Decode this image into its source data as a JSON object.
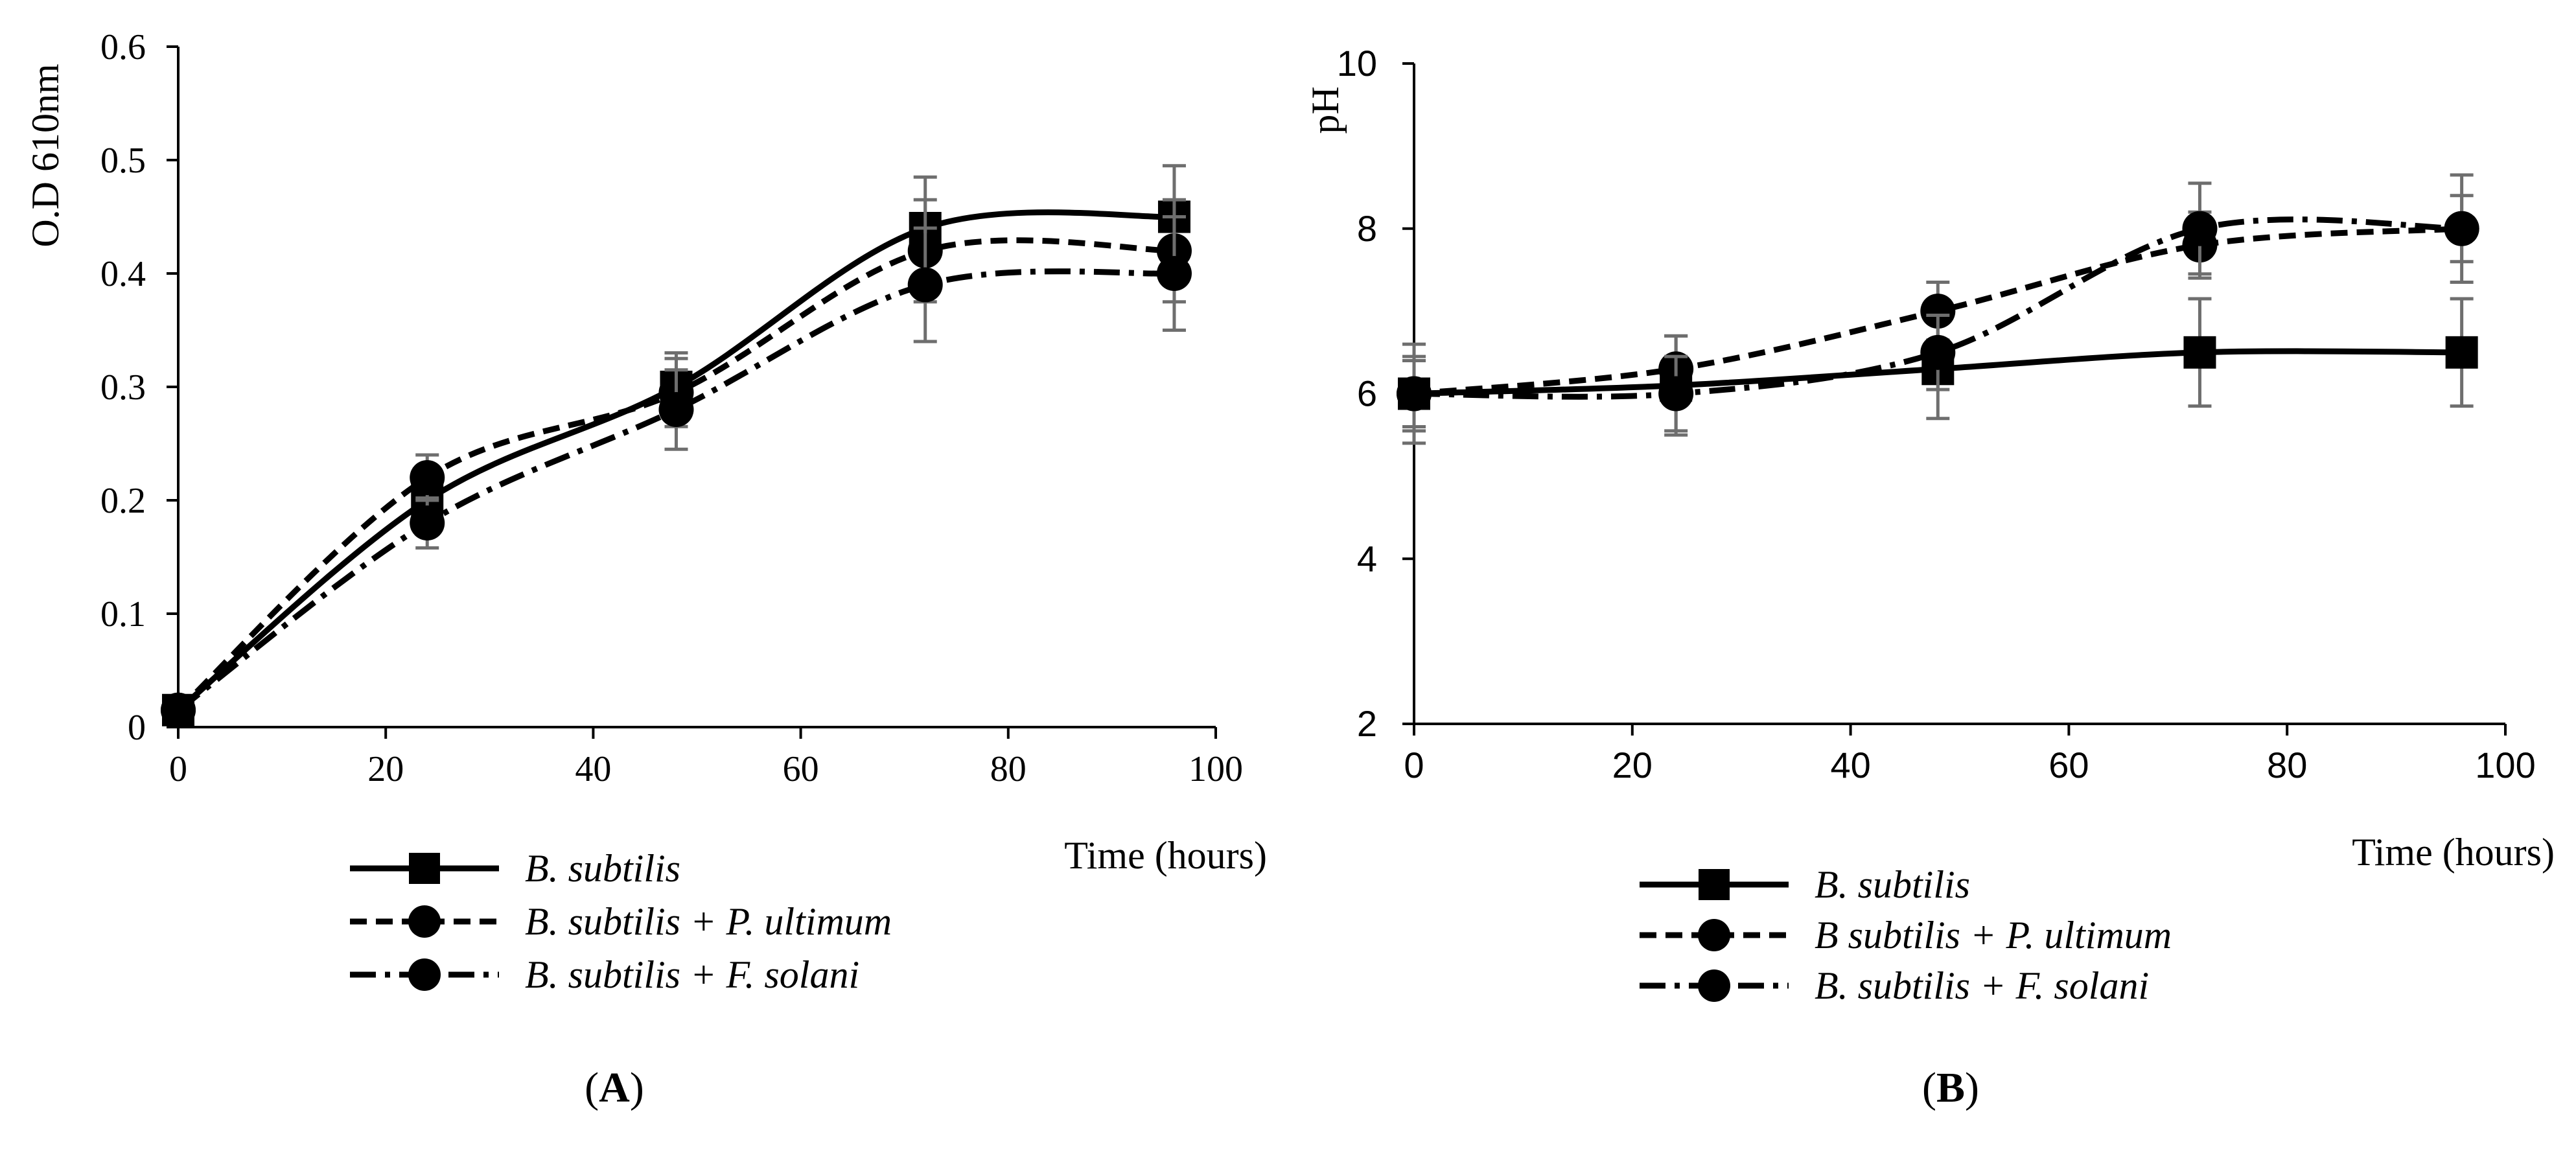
{
  "chart_data": [
    {
      "id": "A",
      "type": "line",
      "panel_label": "A",
      "xlabel": "Time (hours)",
      "ylabel": "O.D 610nm",
      "xlim": [
        0,
        100
      ],
      "ylim": [
        0,
        0.6
      ],
      "x_ticks": [
        0,
        20,
        40,
        60,
        80,
        100
      ],
      "y_ticks": [
        0,
        0.1,
        0.2,
        0.3,
        0.4,
        0.5,
        0.6
      ],
      "x_tick_labels": [
        "0",
        "20",
        "40",
        "60",
        "80",
        "100"
      ],
      "y_tick_labels": [
        "0",
        "0.1",
        "0.2",
        "0.3",
        "0.4",
        "0.5",
        "0.6"
      ],
      "x": [
        0,
        24,
        48,
        72,
        96
      ],
      "series": [
        {
          "name": "B. subtilis",
          "style": "solid",
          "marker": "square",
          "values": [
            0.015,
            0.2,
            0.3,
            0.44,
            0.45
          ],
          "errors": [
            0.01,
            0.02,
            0.03,
            0.045,
            0.045
          ]
        },
        {
          "name": "B. subtilis + P. ultimum",
          "style": "dash",
          "marker": "circle",
          "values": [
            0.015,
            0.22,
            0.295,
            0.42,
            0.42
          ],
          "errors": [
            0.01,
            0.02,
            0.03,
            0.045,
            0.045
          ]
        },
        {
          "name": "B. subtilis + F. solani",
          "style": "dashdot",
          "marker": "circle",
          "values": [
            0.015,
            0.18,
            0.28,
            0.39,
            0.4
          ],
          "errors": [
            0.01,
            0.022,
            0.035,
            0.05,
            0.05
          ]
        }
      ],
      "legend": [
        "B. subtilis",
        "B. subtilis + P. ultimum",
        "B. subtilis + F. solani"
      ]
    },
    {
      "id": "B",
      "type": "line",
      "panel_label": "B",
      "xlabel": "Time (hours)",
      "ylabel": "pH",
      "xlim": [
        0,
        100
      ],
      "ylim": [
        2,
        10
      ],
      "x_ticks": [
        0,
        20,
        40,
        60,
        80,
        100
      ],
      "y_ticks": [
        2,
        4,
        6,
        8,
        10
      ],
      "x_tick_labels": [
        "0",
        "20",
        "40",
        "60",
        "80",
        "100"
      ],
      "y_tick_labels": [
        "2",
        "4",
        "6",
        "8",
        "10"
      ],
      "x": [
        0,
        24,
        48,
        72,
        96
      ],
      "series": [
        {
          "name": "B. subtilis",
          "style": "solid",
          "marker": "square",
          "values": [
            6.0,
            6.1,
            6.3,
            6.5,
            6.5
          ],
          "errors": [
            0.6,
            0.6,
            0.6,
            0.65,
            0.65
          ]
        },
        {
          "name": "B subtilis + P. ultimum",
          "style": "dash",
          "marker": "circle",
          "values": [
            6.0,
            6.3,
            7.0,
            7.8,
            8.0
          ],
          "errors": [
            0.45,
            0.4,
            0.35,
            0.4,
            0.4
          ]
        },
        {
          "name": "B. subtilis + F. solani",
          "style": "dashdot",
          "marker": "circle",
          "values": [
            6.0,
            6.0,
            6.5,
            8.0,
            8.0
          ],
          "errors": [
            0.4,
            0.45,
            0.45,
            0.55,
            0.65
          ]
        }
      ],
      "legend": [
        "B. subtilis",
        "B subtilis + P. ultimum",
        "B. subtilis + F. solani"
      ]
    }
  ]
}
